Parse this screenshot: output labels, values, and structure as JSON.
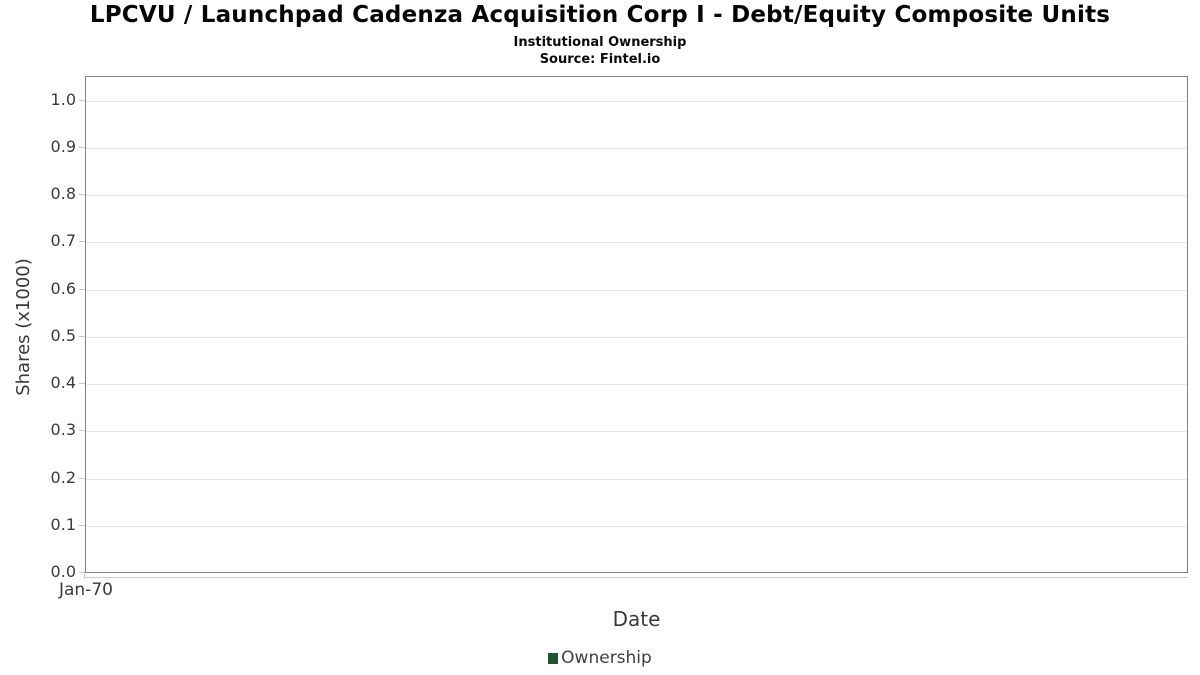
{
  "header": {
    "title": "LPCVU / Launchpad Cadenza Acquisition Corp I - Debt/Equity Composite Units",
    "subtitle": "Institutional Ownership",
    "source": "Source: Fintel.io"
  },
  "chart_data": {
    "type": "line",
    "title": "LPCVU / Launchpad Cadenza Acquisition Corp I - Debt/Equity Composite Units",
    "subtitle": "Institutional Ownership",
    "source": "Source: Fintel.io",
    "xlabel": "Date",
    "ylabel": "Shares (x1000)",
    "ylim": [
      0.0,
      1.05
    ],
    "yticks": [
      0.0,
      0.1,
      0.2,
      0.3,
      0.4,
      0.5,
      0.6,
      0.7,
      0.8,
      0.9,
      1.0
    ],
    "ytick_labels": [
      "0.0",
      "0.1",
      "0.2",
      "0.3",
      "0.4",
      "0.5",
      "0.6",
      "0.7",
      "0.8",
      "0.9",
      "1.0"
    ],
    "xtick_labels": [
      "Jan-70"
    ],
    "grid": true,
    "legend": {
      "position": "bottom",
      "entries": [
        {
          "label": "Ownership",
          "color": "#1e5631"
        }
      ]
    },
    "series": [
      {
        "name": "Ownership",
        "x": [],
        "y": []
      }
    ],
    "colors": {
      "plot_border": "#808080",
      "gridline": "#e6e6e6",
      "tick": "#c8c8c8",
      "axis_text": "#3a3a3a",
      "title_text": "#050505"
    }
  }
}
